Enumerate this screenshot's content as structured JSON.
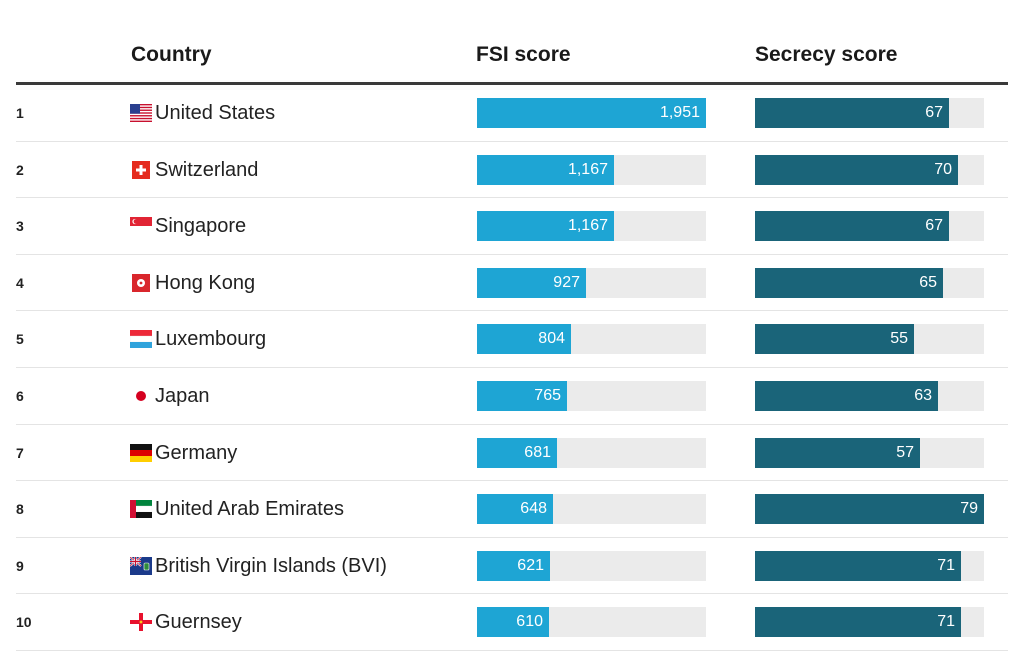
{
  "header": {
    "country": "Country",
    "fsi": "FSI score",
    "secrecy": "Secrecy score"
  },
  "chart_data": {
    "type": "table",
    "columns": [
      "Country",
      "FSI score",
      "Secrecy score"
    ],
    "fsi_max": 1951,
    "secrecy_max": 79,
    "rows": [
      {
        "rank": "1",
        "country": "United States",
        "flag": "us-flag-icon",
        "fsi": 1951,
        "fsi_label": "1,951",
        "secrecy": 67,
        "secrecy_label": "67"
      },
      {
        "rank": "2",
        "country": "Switzerland",
        "flag": "switzerland-flag-icon",
        "fsi": 1167,
        "fsi_label": "1,167",
        "secrecy": 70,
        "secrecy_label": "70"
      },
      {
        "rank": "3",
        "country": "Singapore",
        "flag": "singapore-flag-icon",
        "fsi": 1167,
        "fsi_label": "1,167",
        "secrecy": 67,
        "secrecy_label": "67"
      },
      {
        "rank": "4",
        "country": "Hong Kong",
        "flag": "hong-kong-flag-icon",
        "fsi": 927,
        "fsi_label": "927",
        "secrecy": 65,
        "secrecy_label": "65"
      },
      {
        "rank": "5",
        "country": "Luxembourg",
        "flag": "luxembourg-flag-icon",
        "fsi": 804,
        "fsi_label": "804",
        "secrecy": 55,
        "secrecy_label": "55"
      },
      {
        "rank": "6",
        "country": "Japan",
        "flag": "japan-flag-icon",
        "fsi": 765,
        "fsi_label": "765",
        "secrecy": 63,
        "secrecy_label": "63"
      },
      {
        "rank": "7",
        "country": "Germany",
        "flag": "germany-flag-icon",
        "fsi": 681,
        "fsi_label": "681",
        "secrecy": 57,
        "secrecy_label": "57"
      },
      {
        "rank": "8",
        "country": "United Arab Emirates",
        "flag": "uae-flag-icon",
        "fsi": 648,
        "fsi_label": "648",
        "secrecy": 79,
        "secrecy_label": "79"
      },
      {
        "rank": "9",
        "country": "British Virgin Islands (BVI)",
        "flag": "bvi-flag-icon",
        "fsi": 621,
        "fsi_label": "621",
        "secrecy": 71,
        "secrecy_label": "71"
      },
      {
        "rank": "10",
        "country": "Guernsey",
        "flag": "guernsey-flag-icon",
        "fsi": 610,
        "fsi_label": "610",
        "secrecy": 71,
        "secrecy_label": "71"
      }
    ]
  },
  "colors": {
    "fsi_bar": "#1ea5d4",
    "secrecy_bar": "#1a6479",
    "track": "#ebebeb"
  }
}
